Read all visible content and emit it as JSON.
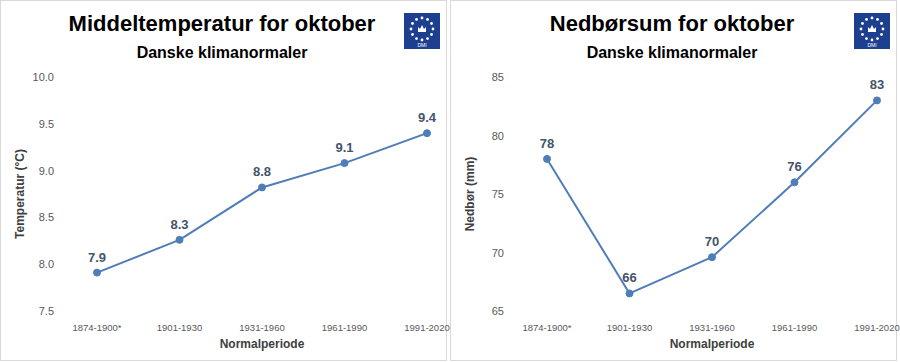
{
  "chart_data": [
    {
      "type": "line",
      "title": "Middeltemperatur for oktober",
      "subtitle": "Danske klimanormaler",
      "logo_text": "DMI",
      "x_label": "Normalperiode",
      "y_label": "Temperatur (°C)",
      "categories": [
        "1874-1900*",
        "1901-1930",
        "1931-1960",
        "1961-1990",
        "1991-2020"
      ],
      "values": [
        7.91,
        8.26,
        8.82,
        9.08,
        9.4
      ],
      "value_labels": [
        "7.9",
        "8.3",
        "8.8",
        "9.1",
        "9.4"
      ],
      "color": "#4f7db8",
      "marker": "circle",
      "data_labels": true,
      "grid": false,
      "ylim": [
        7.5,
        10
      ],
      "yticks": [
        7.5,
        {
          "value": 8,
          "label": "8.0"
        },
        8.5,
        {
          "value": 9,
          "label": "9.0"
        },
        9.5,
        {
          "value": 10,
          "label": "10.0"
        }
      ]
    },
    {
      "type": "line",
      "title": "Nedbørsum for oktober",
      "subtitle": "Danske klimanormaler",
      "logo_text": "DMI",
      "x_label": "Normalperiode",
      "y_label": "Nedbør (mm)",
      "categories": [
        "1874-1900*",
        "1901-1930",
        "1931-1960",
        "1961-1990",
        "1991-2020"
      ],
      "values": [
        78,
        66.5,
        69.6,
        76,
        83
      ],
      "value_labels": [
        "78",
        "66",
        "70",
        "76",
        "83"
      ],
      "color": "#4f7db8",
      "marker": "circle",
      "data_labels": true,
      "grid": false,
      "ylim": [
        65,
        85
      ],
      "yticks": [
        65,
        70,
        75,
        80,
        85
      ]
    }
  ]
}
